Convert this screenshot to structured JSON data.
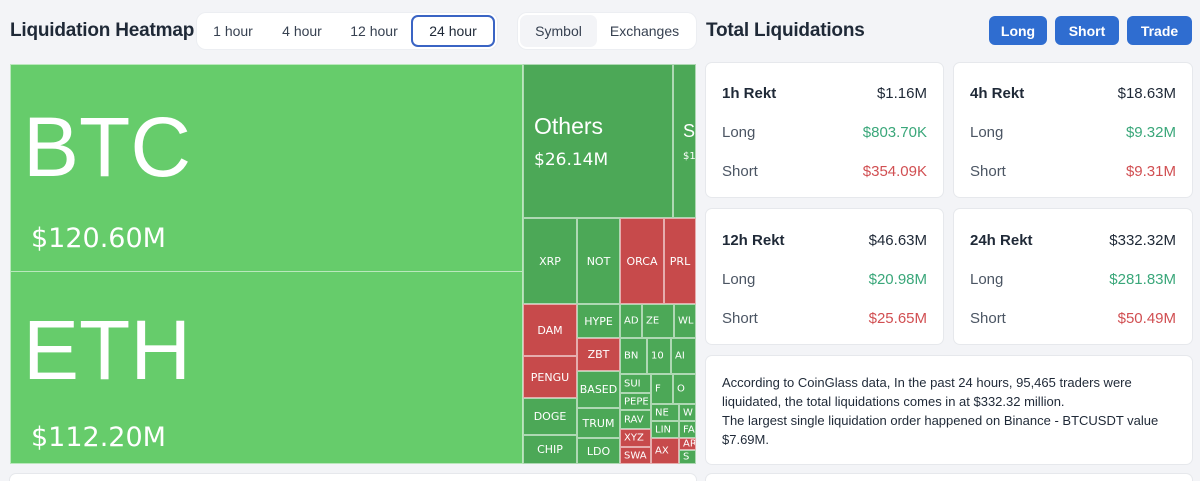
{
  "header": {
    "title": "Liquidation Heatmap",
    "time_tabs": [
      "1 hour",
      "4 hour",
      "12 hour",
      "24 hour"
    ],
    "active_time_tab": "24 hour",
    "view_tabs": [
      "Symbol",
      "Exchanges"
    ],
    "active_view_tab": "Symbol"
  },
  "panel": {
    "title": "Total Liquidations",
    "buttons": {
      "long": "Long",
      "short": "Short",
      "trade": "Trade"
    }
  },
  "colors": {
    "accent": "#2f6dd0",
    "green_tile": "#66cc6b",
    "red_tile": "#c74a4b",
    "long_text": "#3aa77a",
    "short_text": "#d14f52"
  },
  "heatmap": {
    "btc": {
      "symbol": "BTC",
      "value": "$120.60M"
    },
    "eth": {
      "symbol": "ETH",
      "value": "$112.20M"
    },
    "others": {
      "symbol": "Others",
      "value": "$26.14M"
    },
    "sol_partial": {
      "symbol": "S",
      "value": "$1"
    },
    "labels": {
      "xrp": "XRP",
      "not": "NOT",
      "orca": "ORCA",
      "prl": "PRL",
      "dam": "DAM",
      "hype": "HYPE",
      "ad": "AD",
      "ze": "ZE",
      "wl": "WL",
      "zbt": "ZBT",
      "bn": "BN",
      "ten": "10",
      "ai": "AI",
      "pengu": "PENGU",
      "based": "BASED",
      "sui": "SUI",
      "f": "F",
      "o": "O",
      "pepe": "PEPE",
      "ne": "NE",
      "w": "W",
      "doge": "DOGE",
      "trum": "TRUM",
      "rav": "RAV",
      "lin": "LIN",
      "fa": "FA",
      "xyz": "XYZ",
      "ar": "AR",
      "chip": "CHIP",
      "ldo": "LDO",
      "swa": "SWA",
      "ax": "AX",
      "s2": "S"
    }
  },
  "rekt": [
    {
      "title": "1h Rekt",
      "total": "$1.16M",
      "long_label": "Long",
      "long": "$803.70K",
      "short_label": "Short",
      "short": "$354.09K"
    },
    {
      "title": "4h Rekt",
      "total": "$18.63M",
      "long_label": "Long",
      "long": "$9.32M",
      "short_label": "Short",
      "short": "$9.31M"
    },
    {
      "title": "12h Rekt",
      "total": "$46.63M",
      "long_label": "Long",
      "long": "$20.98M",
      "short_label": "Short",
      "short": "$25.65M"
    },
    {
      "title": "24h Rekt",
      "total": "$332.32M",
      "long_label": "Long",
      "long": "$281.83M",
      "short_label": "Short",
      "short": "$50.49M"
    }
  ],
  "summary": {
    "line1": "According to CoinGlass data, In the past 24 hours, 95,465 traders were liquidated, the total liquidations comes in at $332.32 million.",
    "line2": "The largest single liquidation order happened on Binance - BTCUSDT value $7.69M."
  }
}
